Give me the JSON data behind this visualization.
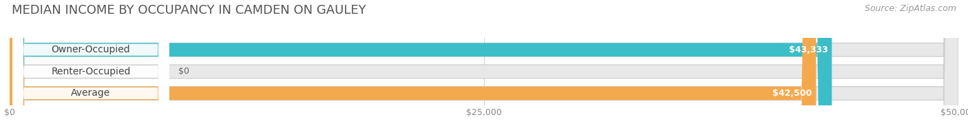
{
  "title": "MEDIAN INCOME BY OCCUPANCY IN CAMDEN ON GAULEY",
  "source": "Source: ZipAtlas.com",
  "categories": [
    "Owner-Occupied",
    "Renter-Occupied",
    "Average"
  ],
  "values": [
    43333,
    0,
    42500
  ],
  "bar_colors": [
    "#3bbec8",
    "#c9aad6",
    "#f5a94e"
  ],
  "value_labels": [
    "$43,333",
    "$0",
    "$42,500"
  ],
  "xlim": [
    0,
    50000
  ],
  "xticklabels": [
    "$0",
    "$25,000",
    "$50,000"
  ],
  "xtick_positions": [
    0,
    25000,
    50000
  ],
  "background_color": "#ffffff",
  "bar_bg_color": "#e8e8e8",
  "title_fontsize": 13,
  "source_fontsize": 9,
  "label_fontsize": 10,
  "value_fontsize": 9,
  "tick_fontsize": 9,
  "bar_height": 0.62
}
